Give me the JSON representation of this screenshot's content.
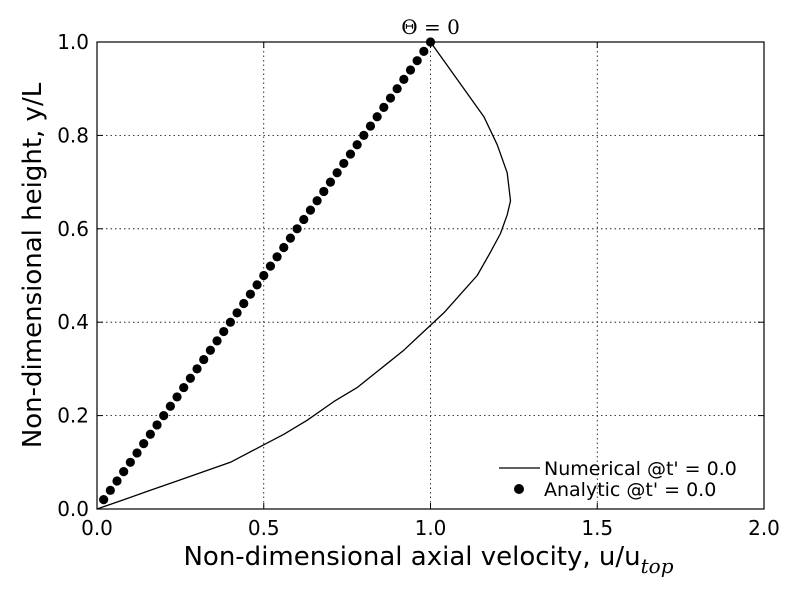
{
  "chart_data": {
    "type": "line",
    "title": "Θ = 0",
    "xlabel": "Non-dimensional axial velocity, u/u",
    "xlabel_sub": "top",
    "ylabel": "Non-dimensional height, y/L",
    "xlim": [
      0.0,
      2.0
    ],
    "ylim": [
      0.0,
      1.0
    ],
    "xticks": [
      "0.0",
      "0.5",
      "1.0",
      "1.5",
      "2.0"
    ],
    "yticks": [
      "0.0",
      "0.2",
      "0.4",
      "0.6",
      "0.8",
      "1.0"
    ],
    "grid": true,
    "legend_position": "lower-right",
    "series": [
      {
        "name": "Numerical @t' = 0.0",
        "style": "line",
        "color": "#000000",
        "points": [
          [
            0.0,
            0.0
          ],
          [
            0.08,
            0.02
          ],
          [
            0.16,
            0.04
          ],
          [
            0.24,
            0.06
          ],
          [
            0.32,
            0.08
          ],
          [
            0.4,
            0.1
          ],
          [
            0.48,
            0.13
          ],
          [
            0.56,
            0.16
          ],
          [
            0.63,
            0.19
          ],
          [
            0.71,
            0.23
          ],
          [
            0.78,
            0.26
          ],
          [
            0.85,
            0.3
          ],
          [
            0.92,
            0.34
          ],
          [
            0.98,
            0.38
          ],
          [
            1.04,
            0.42
          ],
          [
            1.09,
            0.46
          ],
          [
            1.14,
            0.5
          ],
          [
            1.18,
            0.55
          ],
          [
            1.21,
            0.59
          ],
          [
            1.23,
            0.63
          ],
          [
            1.24,
            0.66
          ],
          [
            1.23,
            0.72
          ],
          [
            1.2,
            0.78
          ],
          [
            1.16,
            0.84
          ],
          [
            1.1,
            0.9
          ],
          [
            1.05,
            0.95
          ],
          [
            1.0,
            1.0
          ]
        ]
      },
      {
        "name": "Analytic @t' = 0.0",
        "style": "marker",
        "color": "#000000",
        "points": [
          [
            0.02,
            0.02
          ],
          [
            0.04,
            0.04
          ],
          [
            0.06,
            0.06
          ],
          [
            0.08,
            0.08
          ],
          [
            0.1,
            0.1
          ],
          [
            0.12,
            0.12
          ],
          [
            0.14,
            0.14
          ],
          [
            0.16,
            0.16
          ],
          [
            0.18,
            0.18
          ],
          [
            0.2,
            0.2
          ],
          [
            0.22,
            0.22
          ],
          [
            0.24,
            0.24
          ],
          [
            0.26,
            0.26
          ],
          [
            0.28,
            0.28
          ],
          [
            0.3,
            0.3
          ],
          [
            0.32,
            0.32
          ],
          [
            0.34,
            0.34
          ],
          [
            0.36,
            0.36
          ],
          [
            0.38,
            0.38
          ],
          [
            0.4,
            0.4
          ],
          [
            0.42,
            0.42
          ],
          [
            0.44,
            0.44
          ],
          [
            0.46,
            0.46
          ],
          [
            0.48,
            0.48
          ],
          [
            0.5,
            0.5
          ],
          [
            0.52,
            0.52
          ],
          [
            0.54,
            0.54
          ],
          [
            0.56,
            0.56
          ],
          [
            0.58,
            0.58
          ],
          [
            0.6,
            0.6
          ],
          [
            0.62,
            0.62
          ],
          [
            0.64,
            0.64
          ],
          [
            0.66,
            0.66
          ],
          [
            0.68,
            0.68
          ],
          [
            0.7,
            0.7
          ],
          [
            0.72,
            0.72
          ],
          [
            0.74,
            0.74
          ],
          [
            0.76,
            0.76
          ],
          [
            0.78,
            0.78
          ],
          [
            0.8,
            0.8
          ],
          [
            0.82,
            0.82
          ],
          [
            0.84,
            0.84
          ],
          [
            0.86,
            0.86
          ],
          [
            0.88,
            0.88
          ],
          [
            0.9,
            0.9
          ],
          [
            0.92,
            0.92
          ],
          [
            0.94,
            0.94
          ],
          [
            0.96,
            0.96
          ],
          [
            0.98,
            0.98
          ],
          [
            1.0,
            1.0
          ]
        ]
      }
    ]
  }
}
